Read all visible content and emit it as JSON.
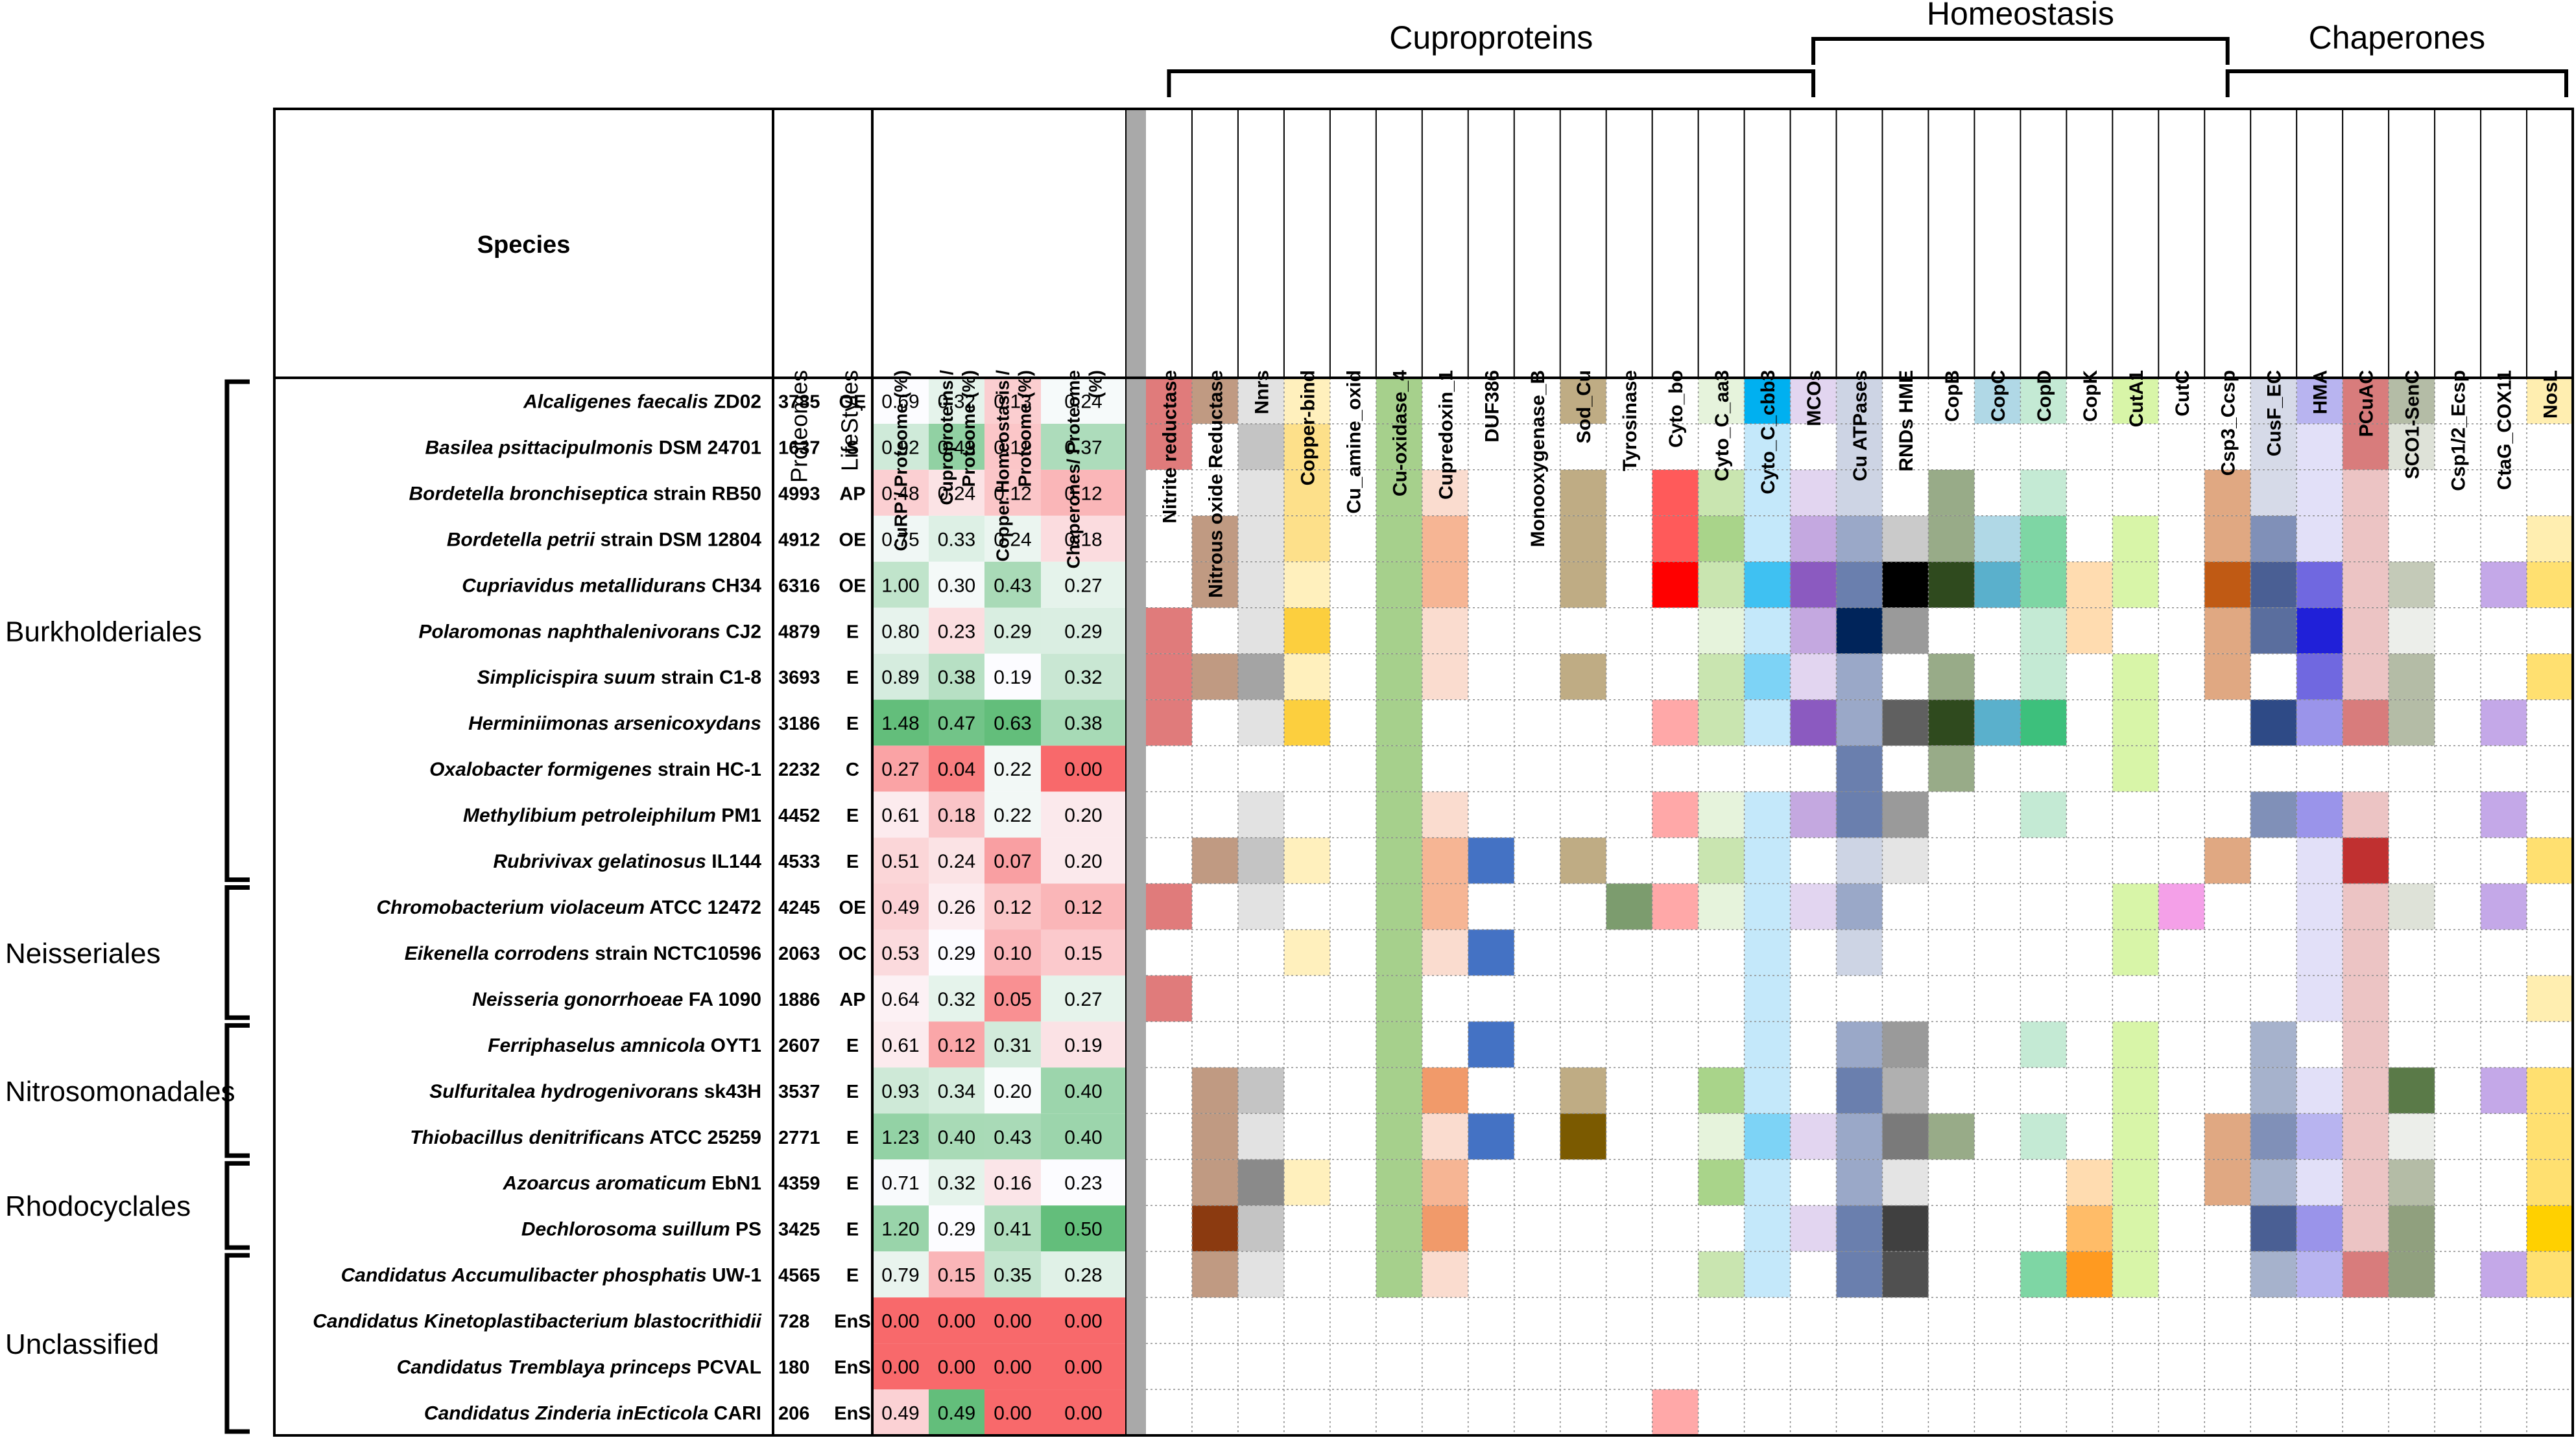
{
  "chart_data": {
    "type": "heatmap",
    "title": "",
    "groups": [
      {
        "label": "Cuproproteins",
        "from": "Nitrite reductase",
        "to": "MCOs"
      },
      {
        "label": "Homeostasis",
        "from": "MCOs",
        "to": "Csp3_Ccsp"
      },
      {
        "label": "Chaperones",
        "from": "Csp3_Ccsp",
        "to": "NosL"
      }
    ],
    "headers": {
      "species": "Species",
      "proteomes": "Proteomes",
      "lifestyles": "LifeStyles",
      "percent_columns": [
        "CuRP / Proteome (%)",
        "Cuproproteins / Proteome (%)",
        "Copper Homeostasis / Proteome (%)",
        "Chaperones/ Proteome (%)"
      ]
    },
    "protein_families": [
      "Nitrite reductase",
      "Nitrous oxide Reductase",
      "Nnrs",
      "Copper-bind",
      "Cu_amine_oxid",
      "Cu-oxidase_4",
      "Cupredoxin_1",
      "DUF386",
      "Monooxygenase_B",
      "Sod_Cu",
      "Tyrosinase",
      "Cyto_bo",
      "Cyto_C_aa3",
      "Cyto_C_cbb3",
      "MCOs",
      "Cu ATPases",
      "RNDs HME",
      "CopB",
      "CopC",
      "CopD",
      "CopK",
      "CutA1",
      "CutC",
      "Csp3_Ccsp",
      "CusF_EC",
      "HMA",
      "PCuAC",
      "SCO1-SenC",
      "Csp1/2_Ecsp",
      "CtaG_COX11",
      "NosL"
    ],
    "orders": [
      {
        "label": "Burkholderiales",
        "first_row": 0,
        "last_row": 10
      },
      {
        "label": "Neisseriales",
        "first_row": 11,
        "last_row": 13
      },
      {
        "label": "Nitrosomonadales",
        "first_row": 14,
        "last_row": 16
      },
      {
        "label": "Rhodocyclales",
        "first_row": 17,
        "last_row": 18
      },
      {
        "label": "Unclassified",
        "first_row": 19,
        "last_row": 22
      }
    ],
    "rows": [
      {
        "name": "Alcaligenes faecalis",
        "strain": "ZD02",
        "proteome": "3785",
        "lifestyle": "OE",
        "values": [
          "0.69",
          "0.32",
          "0.13",
          "0.24"
        ]
      },
      {
        "name": "Basilea psittacipulmonis",
        "strain": "DSM 24701",
        "proteome": "1637",
        "lifestyle": "S",
        "values": [
          "0.92",
          "0.43",
          "0.12",
          "0.37"
        ]
      },
      {
        "name": "Bordetella bronchiseptica",
        "strain": "strain RB50",
        "proteome": "4993",
        "lifestyle": "AP",
        "values": [
          "0.48",
          "0.24",
          "0.12",
          "0.12"
        ]
      },
      {
        "name": "Bordetella petrii",
        "strain": "strain DSM 12804",
        "proteome": "4912",
        "lifestyle": "OE",
        "values": [
          "0.75",
          "0.33",
          "0.24",
          "0.18"
        ]
      },
      {
        "name": "Cupriavidus metallidurans",
        "strain": "CH34",
        "proteome": "6316",
        "lifestyle": "OE",
        "values": [
          "1.00",
          "0.30",
          "0.43",
          "0.27"
        ]
      },
      {
        "name": "Polaromonas naphthalenivorans",
        "strain": "CJ2",
        "proteome": "4879",
        "lifestyle": "E",
        "values": [
          "0.80",
          "0.23",
          "0.29",
          "0.29"
        ]
      },
      {
        "name": "Simplicispira suum",
        "strain": "strain C1-8",
        "proteome": "3693",
        "lifestyle": "E",
        "values": [
          "0.89",
          "0.38",
          "0.19",
          "0.32"
        ]
      },
      {
        "name": "Herminiimonas arsenicoxydans",
        "strain": "",
        "proteome": "3186",
        "lifestyle": "E",
        "values": [
          "1.48",
          "0.47",
          "0.63",
          "0.38"
        ]
      },
      {
        "name": "Oxalobacter formigenes",
        "strain": "strain HC-1",
        "proteome": "2232",
        "lifestyle": "C",
        "values": [
          "0.27",
          "0.04",
          "0.22",
          "0.00"
        ]
      },
      {
        "name": "Methylibium petroleiphilum",
        "strain": "PM1",
        "proteome": "4452",
        "lifestyle": "E",
        "values": [
          "0.61",
          "0.18",
          "0.22",
          "0.20"
        ]
      },
      {
        "name": "Rubrivivax gelatinosus",
        "strain": "IL144",
        "proteome": "4533",
        "lifestyle": "E",
        "values": [
          "0.51",
          "0.24",
          "0.07",
          "0.20"
        ]
      },
      {
        "name": "Chromobacterium violaceum",
        "strain": "ATCC 12472",
        "proteome": "4245",
        "lifestyle": "OE",
        "values": [
          "0.49",
          "0.26",
          "0.12",
          "0.12"
        ]
      },
      {
        "name": "Eikenella corrodens",
        "strain": "strain NCTC10596",
        "proteome": "2063",
        "lifestyle": "OC",
        "values": [
          "0.53",
          "0.29",
          "0.10",
          "0.15"
        ]
      },
      {
        "name": "Neisseria gonorrhoeae",
        "strain": "FA 1090",
        "proteome": "1886",
        "lifestyle": "AP",
        "values": [
          "0.64",
          "0.32",
          "0.05",
          "0.27"
        ]
      },
      {
        "name": "Ferriphaselus amnicola",
        "strain": "OYT1",
        "proteome": "2607",
        "lifestyle": "E",
        "values": [
          "0.61",
          "0.12",
          "0.31",
          "0.19"
        ]
      },
      {
        "name": "Sulfuritalea hydrogenivorans",
        "strain": "sk43H",
        "proteome": "3537",
        "lifestyle": "E",
        "values": [
          "0.93",
          "0.34",
          "0.20",
          "0.40"
        ]
      },
      {
        "name": "Thiobacillus denitrificans",
        "strain": "ATCC 25259",
        "proteome": "2771",
        "lifestyle": "E",
        "values": [
          "1.23",
          "0.40",
          "0.43",
          "0.40"
        ]
      },
      {
        "name": "Azoarcus aromaticum",
        "strain": "EbN1",
        "proteome": "4359",
        "lifestyle": "E",
        "values": [
          "0.71",
          "0.32",
          "0.16",
          "0.23"
        ]
      },
      {
        "name": "Dechlorosoma suillum",
        "strain": "PS",
        "proteome": "3425",
        "lifestyle": "E",
        "values": [
          "1.20",
          "0.29",
          "0.41",
          "0.50"
        ]
      },
      {
        "name": "Candidatus Accumulibacter phosphatis",
        "strain": "UW-1",
        "proteome": "4565",
        "lifestyle": "E",
        "values": [
          "0.79",
          "0.15",
          "0.35",
          "0.28"
        ]
      },
      {
        "name": "Candidatus Kinetoplastibacterium blastocrithidii",
        "strain": "",
        "proteome": "728",
        "lifestyle": "EnS",
        "values": [
          "0.00",
          "0.00",
          "0.00",
          "0.00"
        ]
      },
      {
        "name": "Candidatus Tremblaya princeps",
        "strain": "PCVAL",
        "proteome": "180",
        "lifestyle": "EnS",
        "values": [
          "0.00",
          "0.00",
          "0.00",
          "0.00"
        ]
      },
      {
        "name": "Candidatus Zinderia inEcticola",
        "strain": "CARI",
        "proteome": "206",
        "lifestyle": "EnS",
        "values": [
          "0.49",
          "0.49",
          "0.00",
          "0.00"
        ]
      }
    ],
    "family_cell_colors": {
      "Nitrite reductase": [
        "#e07b7b",
        "#e07b7b",
        "",
        "",
        "",
        "#e07b7b",
        "#e07b7b",
        "#e07b7b",
        "",
        "",
        "",
        "#e07b7b",
        "",
        "#e07b7b",
        "",
        "",
        "",
        "",
        "",
        "",
        "",
        "",
        ""
      ],
      "Nitrous oxide Reductase": [
        "#c09a82",
        "",
        "",
        "#c09a82",
        "#c09a82",
        "",
        "#c09a82",
        "",
        "",
        "",
        "#c09a82",
        "",
        "",
        "",
        "",
        "#c09a82",
        "#c09a82",
        "#c09a82",
        "#8b3a10",
        "#c09a82",
        "",
        "",
        ""
      ],
      "Nnrs": [
        "#e2e2e2",
        "#c4c4c4",
        "#e2e2e2",
        "#e2e2e2",
        "#e2e2e2",
        "#e2e2e2",
        "#a4a4a4",
        "#e2e2e2",
        "",
        "#e2e2e2",
        "#c4c4c4",
        "#e2e2e2",
        "",
        "",
        "",
        "#c4c4c4",
        "#e2e2e2",
        "#8a8a8a",
        "#c4c4c4",
        "#e2e2e2",
        "",
        "",
        ""
      ],
      "Copper-bind": [
        "#fff0bd",
        "#fde08a",
        "#fde08a",
        "#fde08a",
        "#fff0bd",
        "#fccf3e",
        "#fff0bd",
        "#fccf3e",
        "",
        "",
        "#fff0bd",
        "",
        "#fff0bd",
        "",
        "",
        "",
        "",
        "#fff0bd",
        "",
        "",
        "",
        "",
        ""
      ],
      "Cu_amine_oxid": [
        "",
        "",
        "",
        "",
        "",
        "",
        "",
        "",
        "",
        "",
        "",
        "",
        "",
        "",
        "",
        "",
        "",
        "",
        "",
        "",
        "",
        "",
        ""
      ],
      "Cu-oxidase_4": [
        "#a6d08c",
        "#a6d08c",
        "#a6d08c",
        "#a6d08c",
        "#a6d08c",
        "#a6d08c",
        "#a6d08c",
        "#a6d08c",
        "#a6d08c",
        "#a6d08c",
        "#a6d08c",
        "#a6d08c",
        "#a6d08c",
        "#a6d08c",
        "#a6d08c",
        "#a6d08c",
        "#a6d08c",
        "#a6d08c",
        "#a6d08c",
        "#a6d08c",
        "",
        "",
        ""
      ],
      "Cupredoxin_1": [
        "",
        "",
        "#fadccf",
        "#f6b594",
        "#f6b594",
        "#fadccf",
        "#fadccf",
        "",
        "",
        "#fadccf",
        "#f6b594",
        "#f6b594",
        "#fadccf",
        "",
        "",
        "#f19a6a",
        "#fadccf",
        "#f6b594",
        "#f19a6a",
        "#fadccf",
        "",
        "",
        ""
      ],
      "DUF386": [
        "",
        "",
        "",
        "",
        "",
        "",
        "",
        "",
        "",
        "",
        "#4472c4",
        "",
        "#4472c4",
        "",
        "#4472c4",
        "",
        "#4472c4",
        "",
        "",
        "",
        "",
        "",
        ""
      ],
      "Monooxygenase_B": [
        "",
        "",
        "",
        "",
        "",
        "",
        "",
        "",
        "",
        "",
        "",
        "",
        "",
        "",
        "",
        "",
        "",
        "",
        "",
        "",
        "",
        "",
        ""
      ],
      "Sod_Cu": [
        "#bfac84",
        "",
        "#bfac84",
        "#bfac84",
        "#bfac84",
        "",
        "#bfac84",
        "",
        "",
        "",
        "#bfac84",
        "",
        "",
        "",
        "",
        "#bfac84",
        "#7b5a00",
        "",
        "",
        "",
        "",
        "",
        ""
      ],
      "Tyrosinase": [
        "",
        "",
        "",
        "",
        "",
        "",
        "",
        "",
        "",
        "",
        "",
        "#7c9c6e",
        "",
        "",
        "",
        "",
        "",
        "",
        "",
        "",
        "",
        "",
        ""
      ],
      "Cyto_bo": [
        "",
        "",
        "#ff5a5a",
        "#ff5a5a",
        "#ff0000",
        "",
        "",
        "#ffa8a8",
        "",
        "#ffa8a8",
        "",
        "#ffa8a8",
        "",
        "",
        "",
        "",
        "",
        "",
        "",
        "",
        "",
        "",
        "#ffa8a8"
      ],
      "Cyto_C_aa3": [
        "#e6f3dc",
        "",
        "#c9e5b0",
        "#a9d48a",
        "#c9e5b0",
        "#e6f3dc",
        "#c9e5b0",
        "#c9e5b0",
        "",
        "#e6f3dc",
        "#c9e5b0",
        "#e6f3dc",
        "",
        "",
        "",
        "#a9d48a",
        "#e6f3dc",
        "#a9d48a",
        "",
        "#c9e5b0",
        "",
        "",
        ""
      ],
      "Cyto_C_cbb3": [
        "#00b0f0",
        "#c4e8fa",
        "#c4e8fa",
        "#c4e8fa",
        "#3fc1f2",
        "#c4e8fa",
        "#7dd3f6",
        "#c4e8fa",
        "",
        "#c4e8fa",
        "#c4e8fa",
        "#c4e8fa",
        "#c4e8fa",
        "#c4e8fa",
        "#c4e8fa",
        "#c4e8fa",
        "#7dd3f6",
        "#c4e8fa",
        "#c4e8fa",
        "#c4e8fa",
        "",
        "",
        ""
      ],
      "MCOs": [
        "#e2d5f0",
        "",
        "#e2d5f0",
        "#c4a8e0",
        "#8b5ac0",
        "#c4a8e0",
        "#e2d5f0",
        "#8b5ac0",
        "",
        "#c4a8e0",
        "",
        "#e2d5f0",
        "",
        "",
        "",
        "",
        "#e2d5f0",
        "",
        "#e2d5f0",
        "",
        "",
        "",
        ""
      ],
      "Cu ATPases": [
        "#cdd4e4",
        "#cdd4e4",
        "#cdd4e4",
        "#9aa8c8",
        "#6a7fae",
        "#00245a",
        "#9aa8c8",
        "#9aa8c8",
        "#6a7fae",
        "#6a7fae",
        "#cdd4e4",
        "#9aa8c8",
        "#cdd4e4",
        "",
        "#9aa8c8",
        "#6a7fae",
        "#9aa8c8",
        "#9aa8c8",
        "#6a7fae",
        "#6a7fae",
        "",
        "",
        ""
      ],
      "RNDs HME": [
        "",
        "",
        "",
        "#cacaca",
        "#000000",
        "#9a9a9a",
        "",
        "#606060",
        "",
        "#9a9a9a",
        "#e4e4e4",
        "",
        "",
        "",
        "#9a9a9a",
        "#b0b0b0",
        "#7a7a7a",
        "#e4e4e4",
        "#404040",
        "#505050",
        "",
        "",
        ""
      ],
      "CopB": [
        "",
        "",
        "#98ab88",
        "#98ab88",
        "#2f4a1e",
        "",
        "#98ab88",
        "#2f4a1e",
        "#98ab88",
        "",
        "",
        "",
        "",
        "",
        "",
        "",
        "#98ab88",
        "",
        "",
        "",
        "",
        "",
        ""
      ],
      "CopC": [
        "#b0d8e6",
        "",
        "",
        "#b0d8e6",
        "#5ab0cc",
        "",
        "",
        "#5ab0cc",
        "",
        "",
        "",
        "",
        "",
        "",
        "",
        "",
        "",
        "",
        "",
        "",
        "",
        "",
        ""
      ],
      "CopD": [
        "#c4ead4",
        "",
        "#c4ead4",
        "#7ed6a4",
        "#7ed6a4",
        "#c4ead4",
        "#c4ead4",
        "#3dc07c",
        "",
        "#c4ead4",
        "",
        "",
        "",
        "",
        "#c4ead4",
        "",
        "#c4ead4",
        "",
        "",
        "#7ed6a4",
        "",
        "",
        ""
      ],
      "CopK": [
        "",
        "",
        "",
        "",
        "#ffdcb0",
        "#ffdcb0",
        "",
        "",
        "",
        "",
        "",
        "",
        "",
        "",
        "",
        "",
        "",
        "#ffdcb0",
        "#ffbc68",
        "#ff9a20",
        "",
        "",
        ""
      ],
      "CutA1": [
        "#d8f5a8",
        "",
        "",
        "#d8f5a8",
        "#d8f5a8",
        "",
        "#d8f5a8",
        "#d8f5a8",
        "#d8f5a8",
        "",
        "",
        "#d8f5a8",
        "#d8f5a8",
        "",
        "#d8f5a8",
        "#d8f5a8",
        "#d8f5a8",
        "#d8f5a8",
        "#d8f5a8",
        "#d8f5a8",
        "",
        "",
        ""
      ],
      "CutC": [
        "",
        "",
        "",
        "",
        "",
        "",
        "",
        "",
        "",
        "",
        "",
        "#f4a0e8",
        "",
        "",
        "",
        "",
        "",
        "",
        "",
        "",
        "",
        "",
        ""
      ],
      "Csp3_Ccsp": [
        "",
        "",
        "#e0a882",
        "#e0a882",
        "#c05a14",
        "#e0a882",
        "#e0a882",
        "",
        "",
        "",
        "#e0a882",
        "",
        "",
        "",
        "",
        "",
        "#e0a882",
        "#e0a882",
        "",
        "",
        "",
        "",
        ""
      ],
      "CusF_EC": [
        "#d6dae8",
        "#d6dae8",
        "#d6dae8",
        "#8090b8",
        "#4a5f94",
        "#5a6e9e",
        "",
        "#2e4a86",
        "",
        "#8090b8",
        "",
        "",
        "",
        "",
        "#a6b2cc",
        "#a6b2cc",
        "#8090b8",
        "#a6b2cc",
        "#4a5f94",
        "#a6b2cc",
        "",
        "",
        ""
      ],
      "HMA": [
        "#b8b4f0",
        "#e2e0f8",
        "#e2e0f8",
        "#e2e0f8",
        "#7068e0",
        "#2020d8",
        "#7068e0",
        "#9a94ea",
        "",
        "#9a94ea",
        "#e2e0f8",
        "#e2e0f8",
        "#e2e0f8",
        "#e2e0f8",
        "",
        "#e2e0f8",
        "#b8b4f0",
        "#e2e0f8",
        "#9a94ea",
        "#b8b4f0",
        "",
        "",
        ""
      ],
      "PCuAC": [
        "#d87c7c",
        "#d87c7c",
        "#ecc4c4",
        "#ecc4c4",
        "#ecc4c4",
        "#ecc4c4",
        "#ecc4c4",
        "#d87c7c",
        "",
        "#ecc4c4",
        "#c03030",
        "#ecc4c4",
        "#ecc4c4",
        "#ecc4c4",
        "#ecc4c4",
        "#ecc4c4",
        "#ecc4c4",
        "#ecc4c4",
        "#ecc4c4",
        "#d87c7c",
        "",
        "",
        ""
      ],
      "SCO1-SenC": [
        "#b4bca6",
        "#dee2d8",
        "",
        "",
        "#c4cab8",
        "#eceeea",
        "#b4bca6",
        "#b4bca6",
        "",
        "",
        "",
        "#dee2d8",
        "",
        "",
        "",
        "#5a7a48",
        "#eceeea",
        "#b4bca6",
        "#90a07e",
        "#90a07e",
        "",
        "",
        ""
      ],
      "Csp1/2_Ecsp": [
        "",
        "",
        "",
        "",
        "",
        "",
        "",
        "",
        "",
        "",
        "",
        "",
        "",
        "",
        "",
        "",
        "",
        "",
        "",
        "",
        "",
        "",
        ""
      ],
      "CtaG_COX11": [
        "",
        "",
        "",
        "",
        "#c4a8e8",
        "",
        "",
        "#c4a8e8",
        "",
        "#c4a8e8",
        "",
        "#c4a8e8",
        "",
        "",
        "",
        "#c4a8e8",
        "",
        "",
        "",
        "#c4a8e8",
        "",
        "",
        ""
      ],
      "NosL": [
        "#ffeeb0",
        "",
        "",
        "#ffeeb0",
        "#ffe070",
        "",
        "#ffe070",
        "",
        "",
        "",
        "#ffe070",
        "",
        "",
        "#ffeeb0",
        "",
        "#ffe070",
        "#ffe070",
        "#ffe070",
        "#ffd000",
        "#ffe070",
        "",
        "",
        ""
      ]
    }
  }
}
